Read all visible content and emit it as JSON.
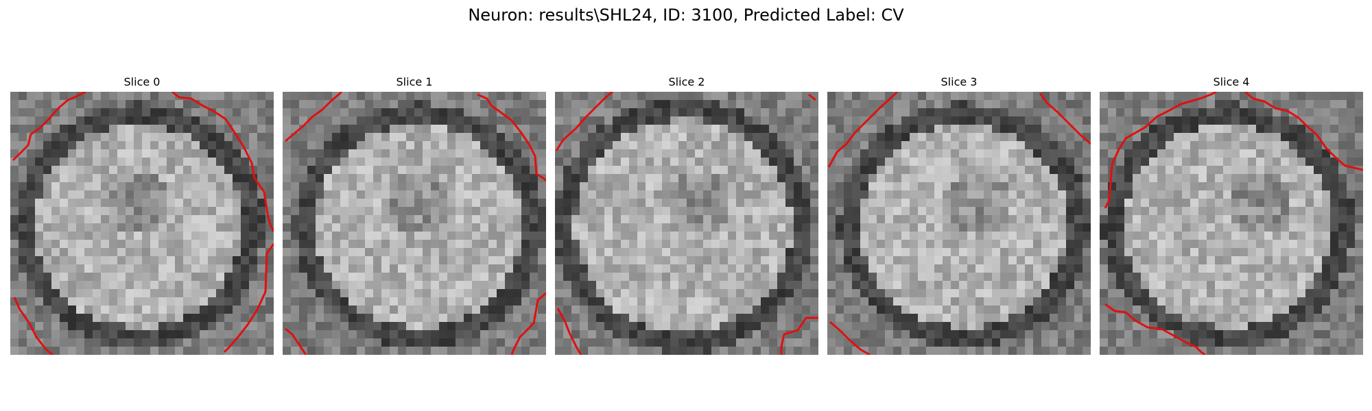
{
  "figure": {
    "title": "Neuron: results\\SHL24, ID: 3100, Predicted Label: CV",
    "panels": [
      {
        "title": "Slice 0"
      },
      {
        "title": "Slice 1"
      },
      {
        "title": "Slice 2"
      },
      {
        "title": "Slice 3"
      },
      {
        "title": "Slice 4"
      }
    ]
  },
  "colors": {
    "contour": "#e01010"
  }
}
